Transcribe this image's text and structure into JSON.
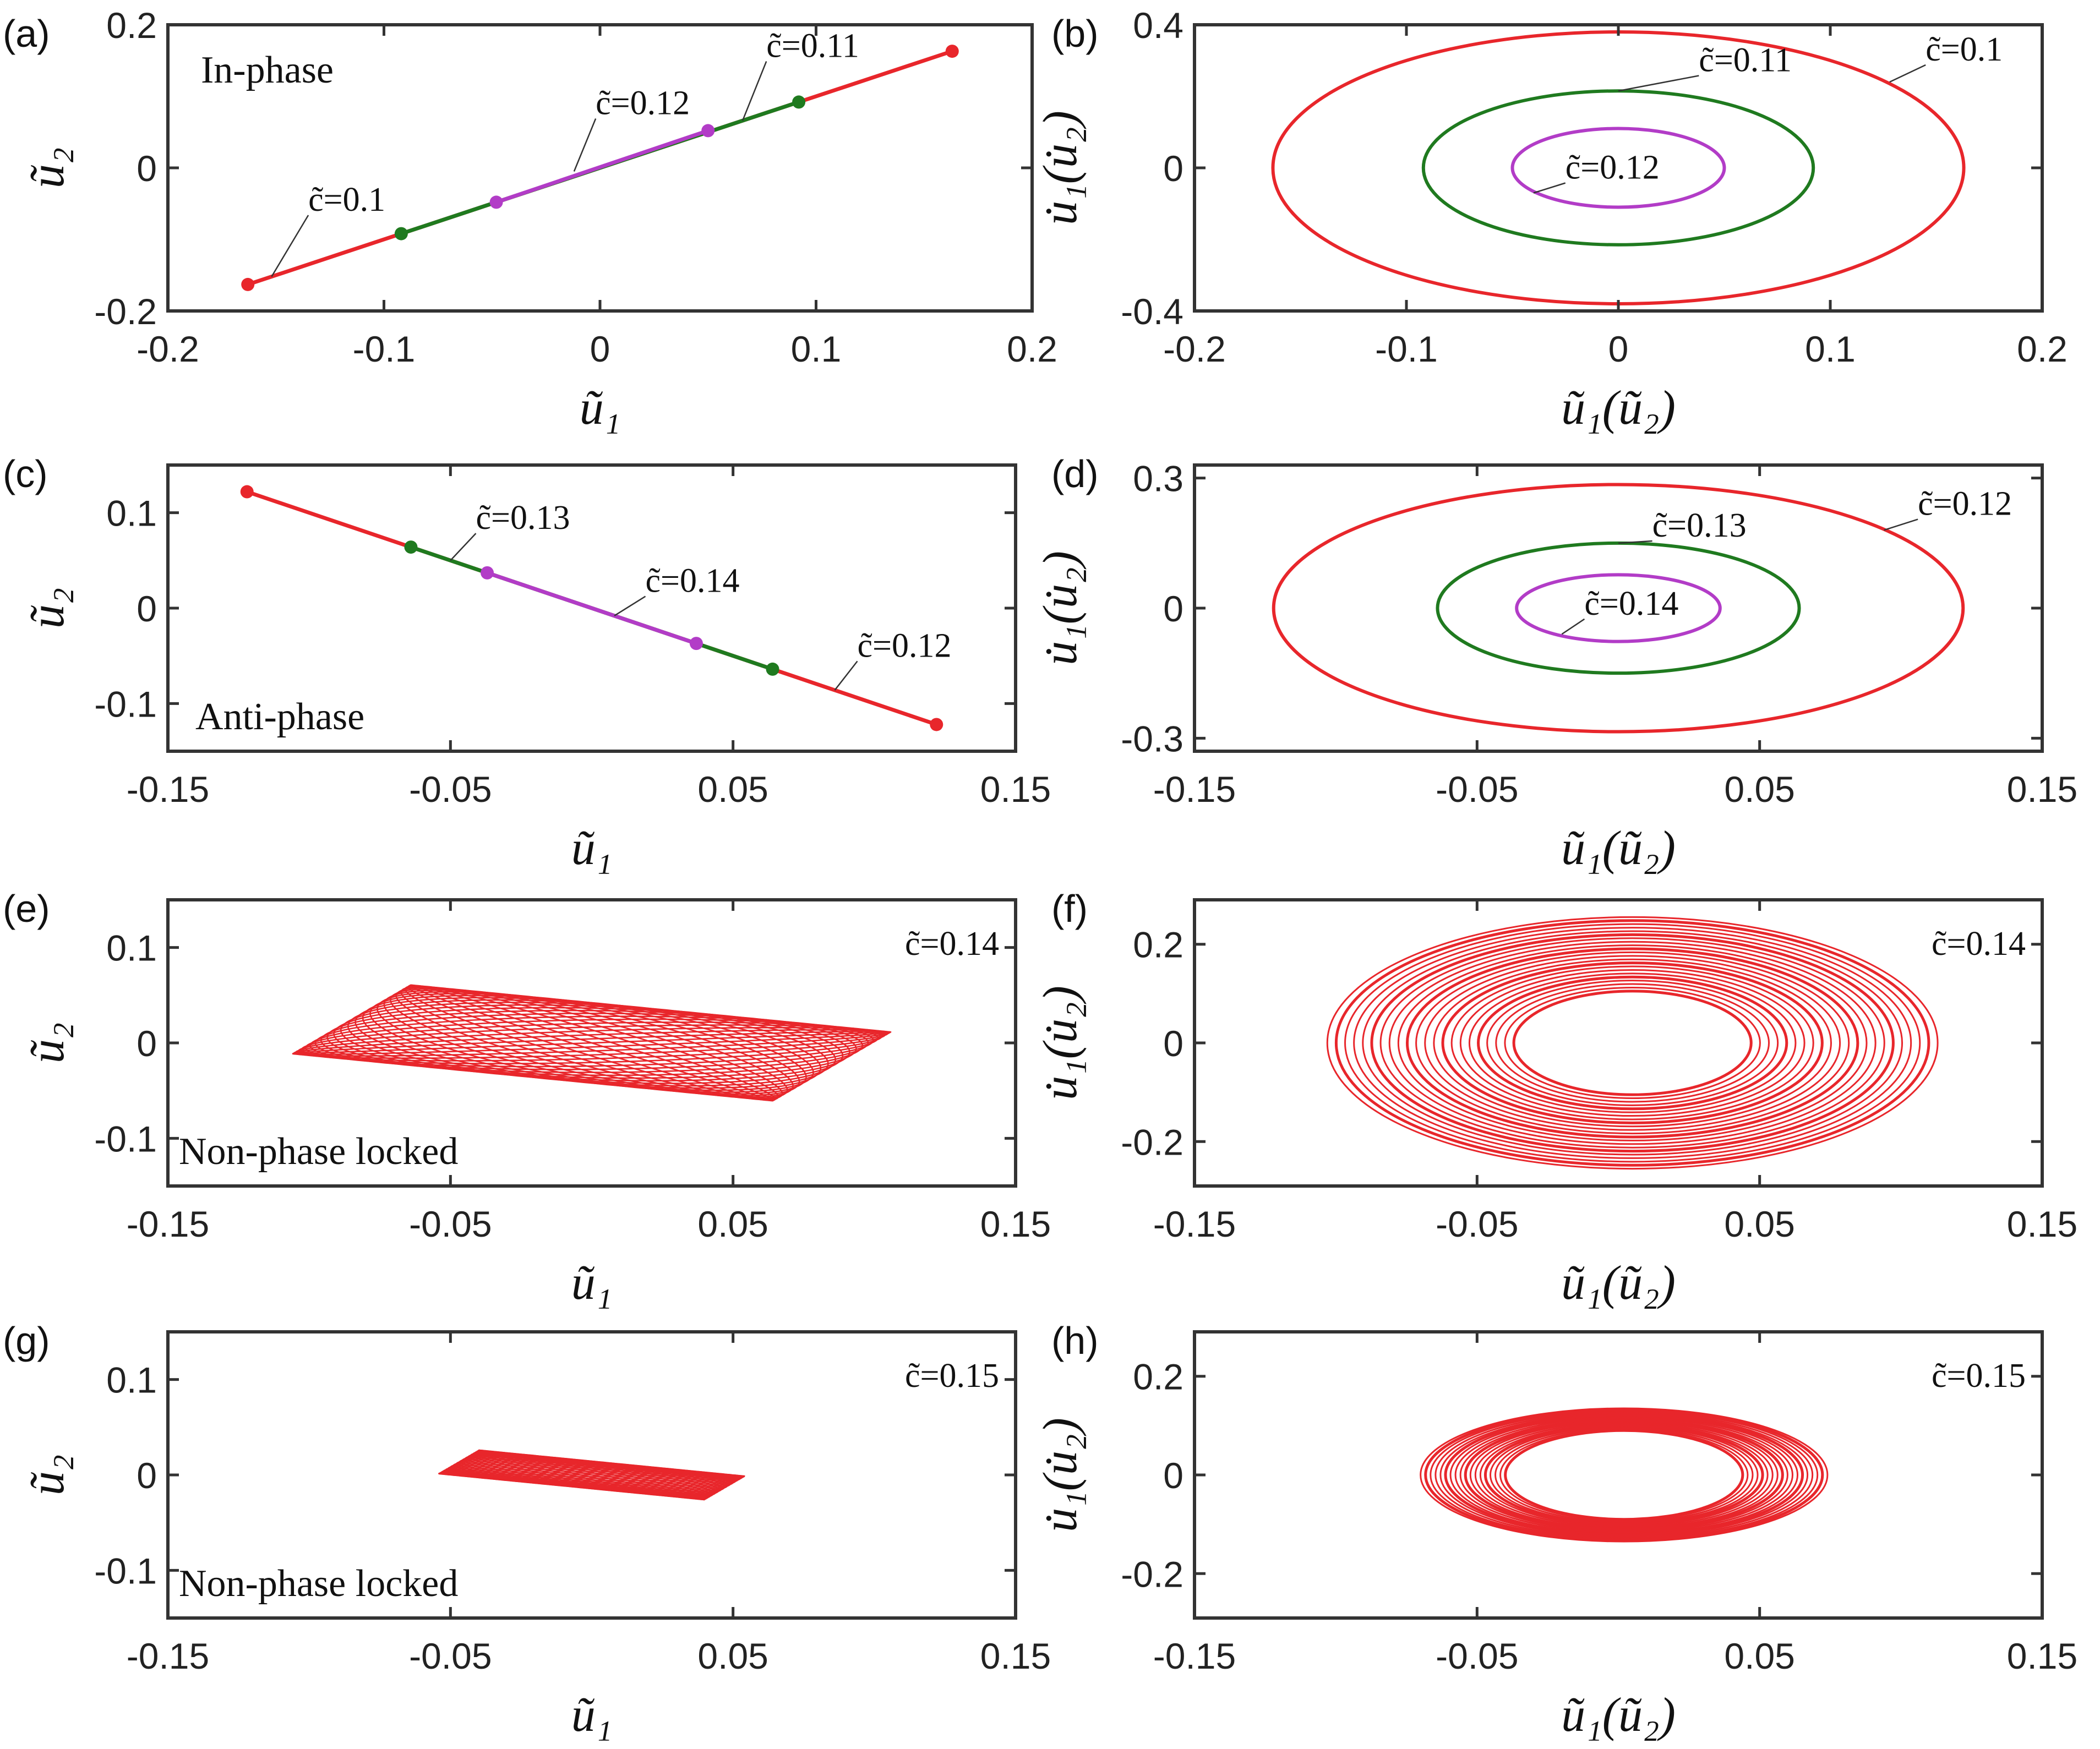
{
  "colors": {
    "red": "#e8262b",
    "green": "#1f7a1f",
    "purple": "#b23cc7",
    "axis": "#333333"
  },
  "chart_data": [
    {
      "panel": "(a)",
      "type": "line",
      "xlabel": "ũ₁",
      "ylabel": "ũ₂",
      "xlim": [
        -0.2,
        0.2
      ],
      "ylim": [
        -0.2,
        0.2
      ],
      "xticks": [
        "-0.2",
        "-0.1",
        "0",
        "0.1",
        "0.2"
      ],
      "yticks": [
        "-0.2",
        "0",
        "0.2"
      ],
      "note": "In-phase",
      "series": [
        {
          "color": "red",
          "x": [
            -0.163,
            0.163
          ],
          "y": [
            -0.163,
            0.163
          ],
          "endpoints": true
        },
        {
          "color": "green",
          "x": [
            -0.092,
            0.092
          ],
          "y": [
            -0.092,
            0.092
          ],
          "endpoints": true
        },
        {
          "color": "purple",
          "x": [
            -0.048,
            0.05
          ],
          "y": [
            -0.048,
            0.052
          ],
          "endpoints": true
        }
      ],
      "annotations": [
        {
          "text": "c̃=0.1",
          "x": -0.135,
          "y": -0.06,
          "px": -0.152,
          "py": -0.152
        },
        {
          "text": "c̃=0.12",
          "x": -0.002,
          "y": 0.075,
          "px": -0.012,
          "py": -0.005
        },
        {
          "text": "c̃=0.11",
          "x": 0.077,
          "y": 0.155,
          "px": 0.066,
          "py": 0.066
        }
      ]
    },
    {
      "panel": "(b)",
      "type": "line",
      "xlabel": "ũ₁(ũ₂)",
      "ylabel": "u̇₁(u̇₂)",
      "xlim": [
        -0.2,
        0.2
      ],
      "ylim": [
        -0.4,
        0.4
      ],
      "xticks": [
        "-0.2",
        "-0.1",
        "0",
        "0.1",
        "0.2"
      ],
      "yticks": [
        "-0.4",
        "0",
        "0.4"
      ],
      "ellipses": [
        {
          "color": "red",
          "cx": 0,
          "cy": 0,
          "rx": 0.163,
          "ry": 0.38
        },
        {
          "color": "green",
          "cx": 0,
          "cy": 0,
          "rx": 0.092,
          "ry": 0.215
        },
        {
          "color": "purple",
          "cx": 0,
          "cy": 0,
          "rx": 0.05,
          "ry": 0.11
        }
      ],
      "annotations": [
        {
          "text": "c̃=0.1",
          "x": 0.145,
          "y": 0.3,
          "px": 0.128,
          "py": 0.24
        },
        {
          "text": "c̃=0.11",
          "x": 0.038,
          "y": 0.27,
          "px": 0.0,
          "py": 0.215
        },
        {
          "text": "c̃=0.12",
          "x": -0.025,
          "y": -0.03,
          "px": -0.04,
          "py": -0.07
        }
      ]
    },
    {
      "panel": "(c)",
      "type": "line",
      "xlabel": "ũ₁",
      "ylabel": "ũ₂",
      "xlim": [
        -0.15,
        0.15
      ],
      "ylim": [
        -0.15,
        0.15
      ],
      "xticks": [
        "-0.15",
        "-0.05",
        "0.05",
        "0.15"
      ],
      "yticks": [
        "-0.1",
        "0",
        "0.1"
      ],
      "note": "Anti-phase",
      "series": [
        {
          "color": "red",
          "x": [
            -0.122,
            0.122
          ],
          "y": [
            0.122,
            -0.122
          ],
          "endpoints": true
        },
        {
          "color": "green",
          "x": [
            -0.064,
            0.064
          ],
          "y": [
            0.064,
            -0.064
          ],
          "endpoints": true
        },
        {
          "color": "purple",
          "x": [
            -0.037,
            0.037
          ],
          "y": [
            0.037,
            -0.037
          ],
          "endpoints": true
        }
      ],
      "annotations": [
        {
          "text": "c̃=0.13",
          "x": -0.041,
          "y": 0.083,
          "px": -0.05,
          "py": 0.05
        },
        {
          "text": "c̃=0.14",
          "x": 0.019,
          "y": 0.017,
          "px": 0.008,
          "py": -0.008
        },
        {
          "text": "c̃=0.12",
          "x": 0.094,
          "y": -0.051,
          "px": 0.086,
          "py": -0.086
        }
      ]
    },
    {
      "panel": "(d)",
      "type": "line",
      "xlabel": "ũ₁(ũ₂)",
      "ylabel": "u̇₁(u̇₂)",
      "xlim": [
        -0.15,
        0.15
      ],
      "ylim": [
        -0.33,
        0.33
      ],
      "xticks": [
        "-0.15",
        "-0.05",
        "0.05",
        "0.15"
      ],
      "yticks": [
        "-0.3",
        "0",
        "0.3"
      ],
      "ellipses": [
        {
          "color": "red",
          "cx": 0,
          "cy": 0,
          "rx": 0.122,
          "ry": 0.285
        },
        {
          "color": "green",
          "cx": 0,
          "cy": 0,
          "rx": 0.064,
          "ry": 0.15
        },
        {
          "color": "purple",
          "cx": 0,
          "cy": 0,
          "rx": 0.036,
          "ry": 0.077
        }
      ],
      "annotations": [
        {
          "text": "c̃=0.12",
          "x": 0.106,
          "y": 0.215,
          "px": 0.094,
          "py": 0.18
        },
        {
          "text": "c̃=0.13",
          "x": 0.012,
          "y": 0.165,
          "px": 0.0,
          "py": 0.15
        },
        {
          "text": "c̃=0.14",
          "x": -0.012,
          "y": -0.015,
          "px": -0.02,
          "py": -0.06
        }
      ]
    },
    {
      "panel": "(e)",
      "type": "line",
      "xlabel": "ũ₁",
      "ylabel": "ũ₂",
      "xlim": [
        -0.15,
        0.15
      ],
      "ylim": [
        -0.15,
        0.15
      ],
      "xticks": [
        "-0.15",
        "-0.05",
        "0.05",
        "0.15"
      ],
      "yticks": [
        "-0.1",
        "0",
        "0.1"
      ],
      "note": "Non-phase locked",
      "label": "c̃=0.14",
      "parallelogram": {
        "color": "red",
        "a": 0.085,
        "b": 0.038,
        "curves": 26
      }
    },
    {
      "panel": "(f)",
      "type": "line",
      "xlabel": "ũ₁(ũ₂)",
      "ylabel": "u̇₁(u̇₂)",
      "xlim": [
        -0.15,
        0.15
      ],
      "ylim": [
        -0.29,
        0.29
      ],
      "xticks": [
        "-0.15",
        "-0.05",
        "0.05",
        "0.15"
      ],
      "yticks": [
        "-0.2",
        "0",
        "0.2"
      ],
      "label": "c̃=0.14",
      "rings": {
        "color": "red",
        "cx": 0.005,
        "cy": 0,
        "rx_min": 0.042,
        "rx_max": 0.108,
        "ry_min": 0.105,
        "ry_max": 0.255,
        "count": 22
      }
    },
    {
      "panel": "(g)",
      "type": "line",
      "xlabel": "ũ₁",
      "ylabel": "ũ₂",
      "xlim": [
        -0.15,
        0.15
      ],
      "ylim": [
        -0.15,
        0.15
      ],
      "xticks": [
        "-0.15",
        "-0.05",
        "0.05",
        "0.15"
      ],
      "yticks": [
        "-0.1",
        "0",
        "0.1"
      ],
      "note": "Non-phase locked",
      "label": "c̃=0.15",
      "parallelogram": {
        "color": "red",
        "a": 0.047,
        "b": 0.013,
        "curves": 22
      }
    },
    {
      "panel": "(h)",
      "type": "line",
      "xlabel": "ũ₁(ũ₂)",
      "ylabel": "u̇₁(u̇₂)",
      "xlim": [
        -0.15,
        0.15
      ],
      "ylim": [
        -0.29,
        0.29
      ],
      "xticks": [
        "-0.15",
        "-0.05",
        "0.05",
        "0.15"
      ],
      "yticks": [
        "-0.2",
        "0",
        "0.2"
      ],
      "label": "c̃=0.15",
      "rings": {
        "color": "red",
        "cx": 0.002,
        "cy": 0,
        "rx_min": 0.042,
        "rx_max": 0.072,
        "ry_min": 0.09,
        "ry_max": 0.135,
        "count": 18
      }
    }
  ]
}
